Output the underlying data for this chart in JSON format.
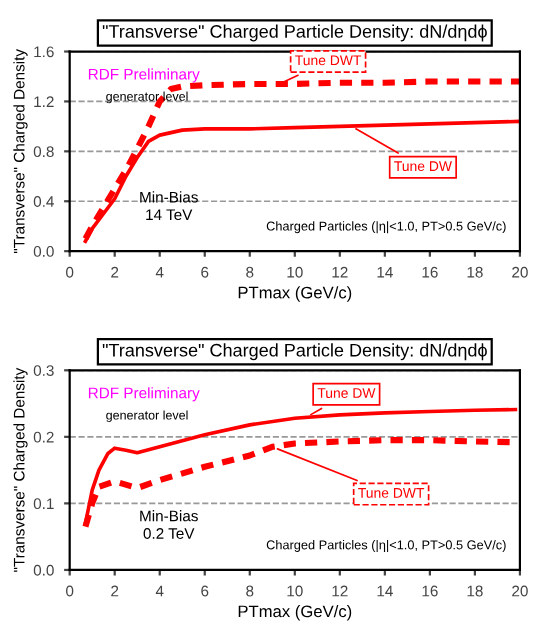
{
  "chart_data": [
    {
      "type": "line",
      "title": "\"Transverse\" Charged Particle Density: dN/dηdϕ",
      "xlabel": "PTmax (GeV/c)",
      "ylabel": "\"Transverse\" Charged Density",
      "xlim": [
        0,
        20
      ],
      "xticks": [
        0,
        2,
        4,
        6,
        8,
        10,
        12,
        14,
        16,
        18,
        20
      ],
      "ylim": [
        0,
        1.6
      ],
      "yticks": [
        {
          "value": 0,
          "label": "0.0"
        },
        0.4,
        0.8,
        1.2,
        1.6
      ],
      "grid": "y",
      "legend": false,
      "annotations": [
        "RDF Preliminary",
        "generator level",
        "Min-Bias\n14 TeV",
        "Charged Particles (|η|<1.0, PT>0.5 GeV/c)"
      ],
      "series": [
        {
          "name": "Tune DW",
          "color": "#ff0000",
          "line_style": "solid",
          "x": [
            0.7,
            1,
            1.5,
            2,
            2.5,
            3,
            3.5,
            4,
            5,
            6,
            8,
            10,
            12,
            14,
            16,
            18,
            20
          ],
          "values": [
            0.08,
            0.18,
            0.3,
            0.42,
            0.6,
            0.75,
            0.88,
            0.93,
            0.97,
            0.98,
            0.98,
            0.99,
            1.0,
            1.01,
            1.02,
            1.03,
            1.04
          ]
        },
        {
          "name": "Tune DWT",
          "color": "#ff0000",
          "line_style": "dashed",
          "x": [
            0.7,
            1,
            1.5,
            2,
            2.5,
            3,
            3.5,
            4,
            4.5,
            5,
            6,
            8,
            10,
            12,
            14,
            16,
            18,
            20
          ],
          "values": [
            0.1,
            0.2,
            0.35,
            0.5,
            0.65,
            0.82,
            1.0,
            1.2,
            1.3,
            1.32,
            1.33,
            1.34,
            1.34,
            1.35,
            1.35,
            1.36,
            1.36,
            1.36
          ]
        }
      ]
    },
    {
      "type": "line",
      "title": "\"Transverse\" Charged Particle Density: dN/dηdϕ",
      "xlabel": "PTmax (GeV/c)",
      "ylabel": "\"Transverse\" Charged Density",
      "xlim": [
        0,
        20
      ],
      "xticks": [
        0,
        2,
        4,
        6,
        8,
        10,
        12,
        14,
        16,
        18,
        20
      ],
      "ylim": [
        0,
        0.3
      ],
      "yticks": [
        {
          "value": 0,
          "label": "0.0"
        },
        0.1,
        0.2,
        0.3
      ],
      "grid": "y",
      "legend": false,
      "annotations": [
        "RDF Preliminary",
        "generator level",
        "Min-Bias\n0.2 TeV",
        "Charged Particles (|η|<1.0, PT>0.5 GeV/c)"
      ],
      "series": [
        {
          "name": "Tune DW",
          "color": "#ff0000",
          "line_style": "solid",
          "x": [
            0.7,
            1,
            1.3,
            1.7,
            2,
            2.5,
            3,
            4,
            6,
            8,
            10,
            12,
            14,
            16,
            18,
            19.8
          ],
          "values": [
            0.07,
            0.12,
            0.15,
            0.175,
            0.183,
            0.18,
            0.176,
            0.185,
            0.203,
            0.218,
            0.228,
            0.233,
            0.236,
            0.238,
            0.24,
            0.241
          ]
        },
        {
          "name": "Tune DWT",
          "color": "#ff0000",
          "line_style": "dashed",
          "x": [
            0.7,
            1,
            1.3,
            2,
            3,
            4,
            6,
            8,
            9,
            10,
            12,
            14,
            16,
            18,
            19.8
          ],
          "values": [
            0.065,
            0.1,
            0.125,
            0.133,
            0.123,
            0.135,
            0.155,
            0.172,
            0.185,
            0.19,
            0.193,
            0.195,
            0.195,
            0.193,
            0.192
          ]
        }
      ]
    }
  ]
}
